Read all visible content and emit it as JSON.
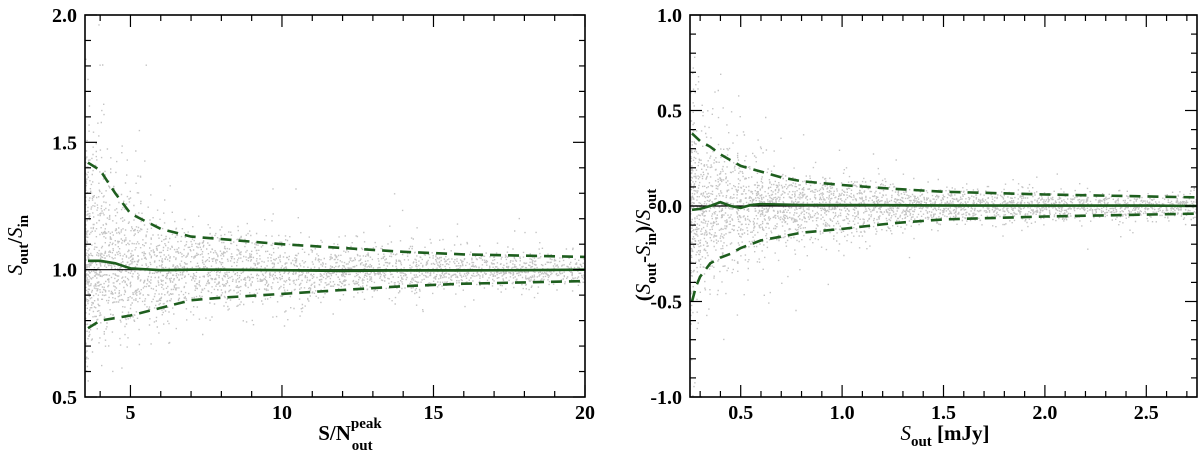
{
  "chart_data": [
    {
      "type": "scatter",
      "xlabel": "S/N",
      "xlabel_sub": "out",
      "xlabel_sup": "peak",
      "ylabel": "S",
      "ylabel_parts": [
        "S",
        "out",
        "/",
        "S",
        "in"
      ],
      "xlim": [
        3.5,
        20
      ],
      "ylim": [
        0.5,
        2.0
      ],
      "xticks": [
        5,
        10,
        15,
        20
      ],
      "xtick_labels": [
        "5",
        "10",
        "15",
        "20"
      ],
      "yticks": [
        0.5,
        1.0,
        1.5,
        2.0
      ],
      "ytick_labels": [
        "0.5",
        "1.0",
        "1.5",
        "2.0"
      ],
      "reference_line_y": 1.0,
      "colors": {
        "points": "#c4c4c4",
        "curves": "#1e5e1e",
        "reference": "#000000"
      },
      "series": [
        {
          "style": "solid",
          "x": [
            3.6,
            4.0,
            4.5,
            5.0,
            6.0,
            7.0,
            8.0,
            10.0,
            12.0,
            14.0,
            16.0,
            18.0,
            20.0
          ],
          "y": [
            1.035,
            1.035,
            1.025,
            1.005,
            0.998,
            1.0,
            1.0,
            0.998,
            0.995,
            0.997,
            0.997,
            0.998,
            1.0
          ]
        },
        {
          "style": "dashed",
          "x": [
            3.6,
            4.0,
            4.5,
            5.0,
            5.5,
            6.0,
            7.0,
            8.0,
            9.0,
            10.0,
            12.0,
            14.0,
            16.0,
            18.0,
            20.0
          ],
          "y": [
            1.42,
            1.39,
            1.3,
            1.22,
            1.19,
            1.16,
            1.13,
            1.12,
            1.11,
            1.1,
            1.085,
            1.07,
            1.06,
            1.055,
            1.05
          ]
        },
        {
          "style": "dashed",
          "x": [
            3.6,
            4.0,
            5.0,
            6.0,
            7.0,
            8.0,
            10.0,
            12.0,
            14.0,
            16.0,
            18.0,
            20.0
          ],
          "y": [
            0.77,
            0.8,
            0.82,
            0.85,
            0.88,
            0.89,
            0.905,
            0.92,
            0.935,
            0.945,
            0.95,
            0.955
          ]
        }
      ]
    },
    {
      "type": "scatter",
      "xlabel": "S",
      "xlabel_parts": [
        "S",
        "out",
        " [mJy]"
      ],
      "ylabel": "(S",
      "ylabel_parts": [
        "(",
        "S",
        "out",
        "-",
        "S",
        "in",
        ")/",
        "S",
        "out"
      ],
      "xlim": [
        0.25,
        2.75
      ],
      "ylim": [
        -1.0,
        1.0
      ],
      "xticks": [
        0.5,
        1.0,
        1.5,
        2.0,
        2.5
      ],
      "xtick_labels": [
        "0.5",
        "1.0",
        "1.5",
        "2.0",
        "2.5"
      ],
      "yticks": [
        -1.0,
        -0.5,
        0.0,
        0.5,
        1.0
      ],
      "ytick_labels": [
        "-1.0",
        "-0.5",
        "0.0",
        "0.5",
        "1.0"
      ],
      "reference_line_y": 0.0,
      "colors": {
        "points": "#c4c4c4",
        "curves": "#1e5e1e",
        "reference": "#000000"
      },
      "series": [
        {
          "style": "solid",
          "x": [
            0.26,
            0.3,
            0.35,
            0.4,
            0.45,
            0.5,
            0.55,
            0.6,
            0.7,
            0.8,
            1.0,
            1.5,
            2.0,
            2.5,
            2.75
          ],
          "y": [
            -0.02,
            -0.015,
            0.0,
            0.02,
            0.0,
            -0.01,
            0.005,
            0.01,
            0.008,
            0.005,
            0.005,
            0.003,
            0.002,
            0.002,
            0.0
          ]
        },
        {
          "style": "dashed",
          "x": [
            0.26,
            0.3,
            0.35,
            0.4,
            0.45,
            0.5,
            0.6,
            0.7,
            0.8,
            1.0,
            1.25,
            1.5,
            2.0,
            2.5,
            2.75
          ],
          "y": [
            0.38,
            0.34,
            0.31,
            0.27,
            0.24,
            0.21,
            0.18,
            0.15,
            0.13,
            0.11,
            0.09,
            0.075,
            0.06,
            0.05,
            0.045
          ]
        },
        {
          "style": "dashed",
          "x": [
            0.26,
            0.28,
            0.3,
            0.35,
            0.4,
            0.45,
            0.5,
            0.6,
            0.7,
            0.8,
            1.0,
            1.25,
            1.5,
            2.0,
            2.5,
            2.75
          ],
          "y": [
            -0.5,
            -0.42,
            -0.37,
            -0.3,
            -0.27,
            -0.25,
            -0.22,
            -0.18,
            -0.16,
            -0.14,
            -0.12,
            -0.09,
            -0.07,
            -0.055,
            -0.045,
            -0.04
          ]
        }
      ]
    }
  ]
}
